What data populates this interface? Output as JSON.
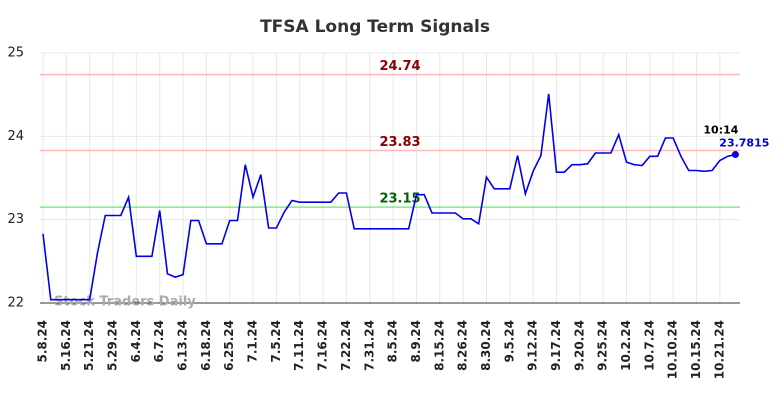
{
  "chart_data": {
    "type": "line",
    "title": "TFSA Long Term Signals",
    "watermark": "Stock Traders Daily",
    "categories": [
      "5.8.24",
      null,
      null,
      "5.16.24",
      null,
      null,
      "5.21.24",
      null,
      null,
      "5.29.24",
      null,
      null,
      "6.4.24",
      null,
      null,
      "6.7.24",
      null,
      null,
      "6.13.24",
      null,
      null,
      "6.18.24",
      null,
      null,
      "6.25.24",
      null,
      null,
      "7.1.24",
      null,
      null,
      "7.5.24",
      null,
      null,
      "7.11.24",
      null,
      null,
      "7.16.24",
      null,
      null,
      "7.22.24",
      null,
      null,
      "7.31.24",
      null,
      null,
      "8.5.24",
      null,
      null,
      "8.9.24",
      null,
      null,
      "8.15.24",
      null,
      null,
      "8.26.24",
      null,
      null,
      "8.30.24",
      null,
      null,
      "9.5.24",
      null,
      null,
      "9.12.24",
      null,
      null,
      "9.17.24",
      null,
      null,
      "9.20.24",
      null,
      null,
      "9.25.24",
      null,
      null,
      "10.2.24",
      null,
      null,
      "10.7.24",
      null,
      null,
      "10.10.24",
      null,
      null,
      "10.15.24",
      null,
      null,
      "10.21.24",
      null,
      null
    ],
    "series": [
      {
        "name": "TFSA",
        "color": "#0000ee",
        "values": [
          22.83,
          22.04,
          22.04,
          22.04,
          22.04,
          22.04,
          22.04,
          22.6,
          23.05,
          23.05,
          23.05,
          23.27,
          22.56,
          22.56,
          22.56,
          23.11,
          22.35,
          22.31,
          22.34,
          22.99,
          22.99,
          22.71,
          22.71,
          22.71,
          22.99,
          22.99,
          23.66,
          23.27,
          23.54,
          22.9,
          22.9,
          23.09,
          23.23,
          23.21,
          23.21,
          23.21,
          23.21,
          23.21,
          23.32,
          23.32,
          22.89,
          22.89,
          22.89,
          22.89,
          22.89,
          22.89,
          22.89,
          22.89,
          23.3,
          23.3,
          23.08,
          23.08,
          23.08,
          23.08,
          23.01,
          23.01,
          22.95,
          23.51,
          23.37,
          23.37,
          23.37,
          23.77,
          23.31,
          23.58,
          23.77,
          24.51,
          23.57,
          23.57,
          23.66,
          23.66,
          23.67,
          23.8,
          23.8,
          23.8,
          24.02,
          23.69,
          23.66,
          23.65,
          23.76,
          23.76,
          23.98,
          23.98,
          23.76,
          23.59,
          23.59,
          23.58,
          23.59,
          23.71,
          23.76,
          23.7815
        ]
      }
    ],
    "last_time": "10:14",
    "hlines": [
      {
        "value": 24.74,
        "color": "#ffbbbb",
        "label_color": "#8b0000"
      },
      {
        "value": 23.83,
        "color": "#ffbbbb",
        "label_color": "#8b0000"
      },
      {
        "value": 23.15,
        "color": "#88e888",
        "label_color": "#006400"
      }
    ],
    "ylim": [
      22,
      25
    ],
    "yticks": [
      22,
      23,
      24,
      25
    ],
    "grid": true
  }
}
